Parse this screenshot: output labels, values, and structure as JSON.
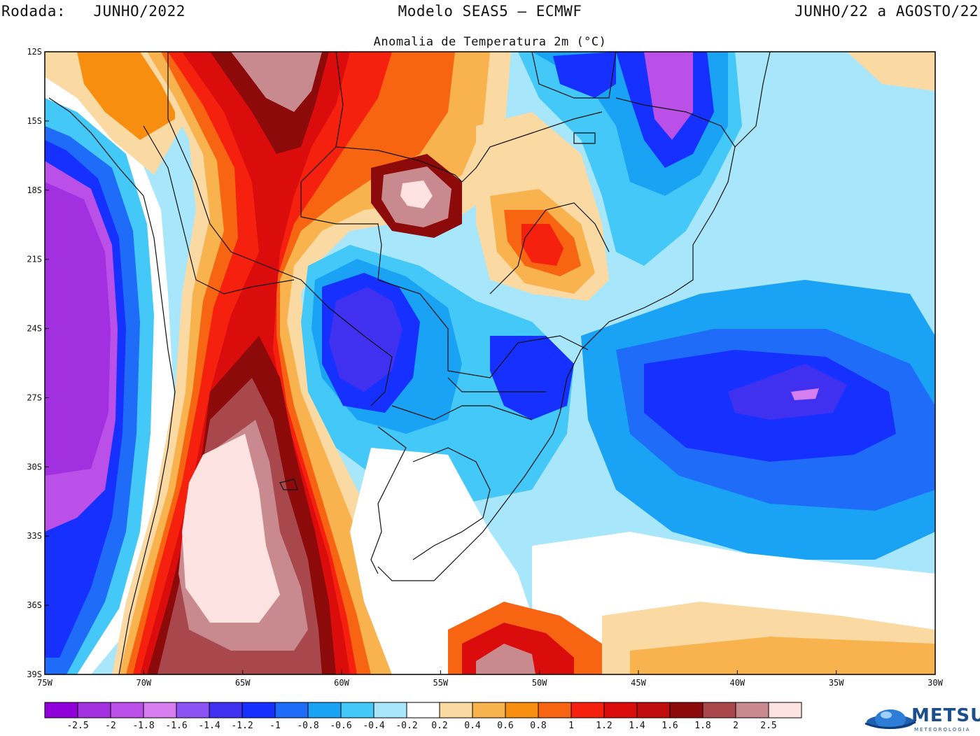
{
  "header": {
    "run_label": "Rodada:   JUNHO/2022",
    "model": "Modelo SEAS5 – ECMWF",
    "period": "JUNHO/22 a AGOSTO/22",
    "subtitle": "Anomalia de Temperatura 2m (°C)"
  },
  "map": {
    "lon_range": [
      -75,
      -30
    ],
    "lat_range": [
      -39,
      -12
    ],
    "lat_ticks": [
      {
        "value": -12,
        "label": "12S"
      },
      {
        "value": -15,
        "label": "15S"
      },
      {
        "value": -18,
        "label": "18S"
      },
      {
        "value": -21,
        "label": "21S"
      },
      {
        "value": -24,
        "label": "24S"
      },
      {
        "value": -27,
        "label": "27S"
      },
      {
        "value": -30,
        "label": "30S"
      },
      {
        "value": -33,
        "label": "33S"
      },
      {
        "value": -36,
        "label": "36S"
      },
      {
        "value": -39,
        "label": "39S"
      }
    ],
    "lon_ticks": [
      {
        "value": -75,
        "label": "75W"
      },
      {
        "value": -70,
        "label": "70W"
      },
      {
        "value": -65,
        "label": "65W"
      },
      {
        "value": -60,
        "label": "60W"
      },
      {
        "value": -55,
        "label": "55W"
      },
      {
        "value": -50,
        "label": "50W"
      },
      {
        "value": -45,
        "label": "45W"
      },
      {
        "value": -40,
        "label": "40W"
      },
      {
        "value": -35,
        "label": "35W"
      },
      {
        "value": -30,
        "label": "30W"
      }
    ]
  },
  "colorbar": {
    "colors": [
      "#9000d8",
      "#a230e0",
      "#bb50e8",
      "#d67ef0",
      "#8c52f4",
      "#4030f0",
      "#1630ff",
      "#1e6cf8",
      "#1aa2f5",
      "#44c8f8",
      "#a8e6fb",
      "#ffffff",
      "#fbd9a2",
      "#f8b24e",
      "#f88e10",
      "#f76412",
      "#f5200e",
      "#db0c0c",
      "#c00c0c",
      "#8c0a0a",
      "#a8484c",
      "#c88a8e",
      "#fde2e2"
    ],
    "labels": [
      "-2.5",
      "-2",
      "-1.8",
      "-1.6",
      "-1.4",
      "-1.2",
      "-1",
      "-0.8",
      "-0.6",
      "-0.4",
      "-0.2",
      "0.2",
      "0.4",
      "0.6",
      "0.8",
      "1",
      "1.2",
      "1.4",
      "1.6",
      "1.8",
      "2",
      "2.5"
    ]
  },
  "logo": {
    "name": "METSUL",
    "sub": "METEOROLOGIA"
  }
}
